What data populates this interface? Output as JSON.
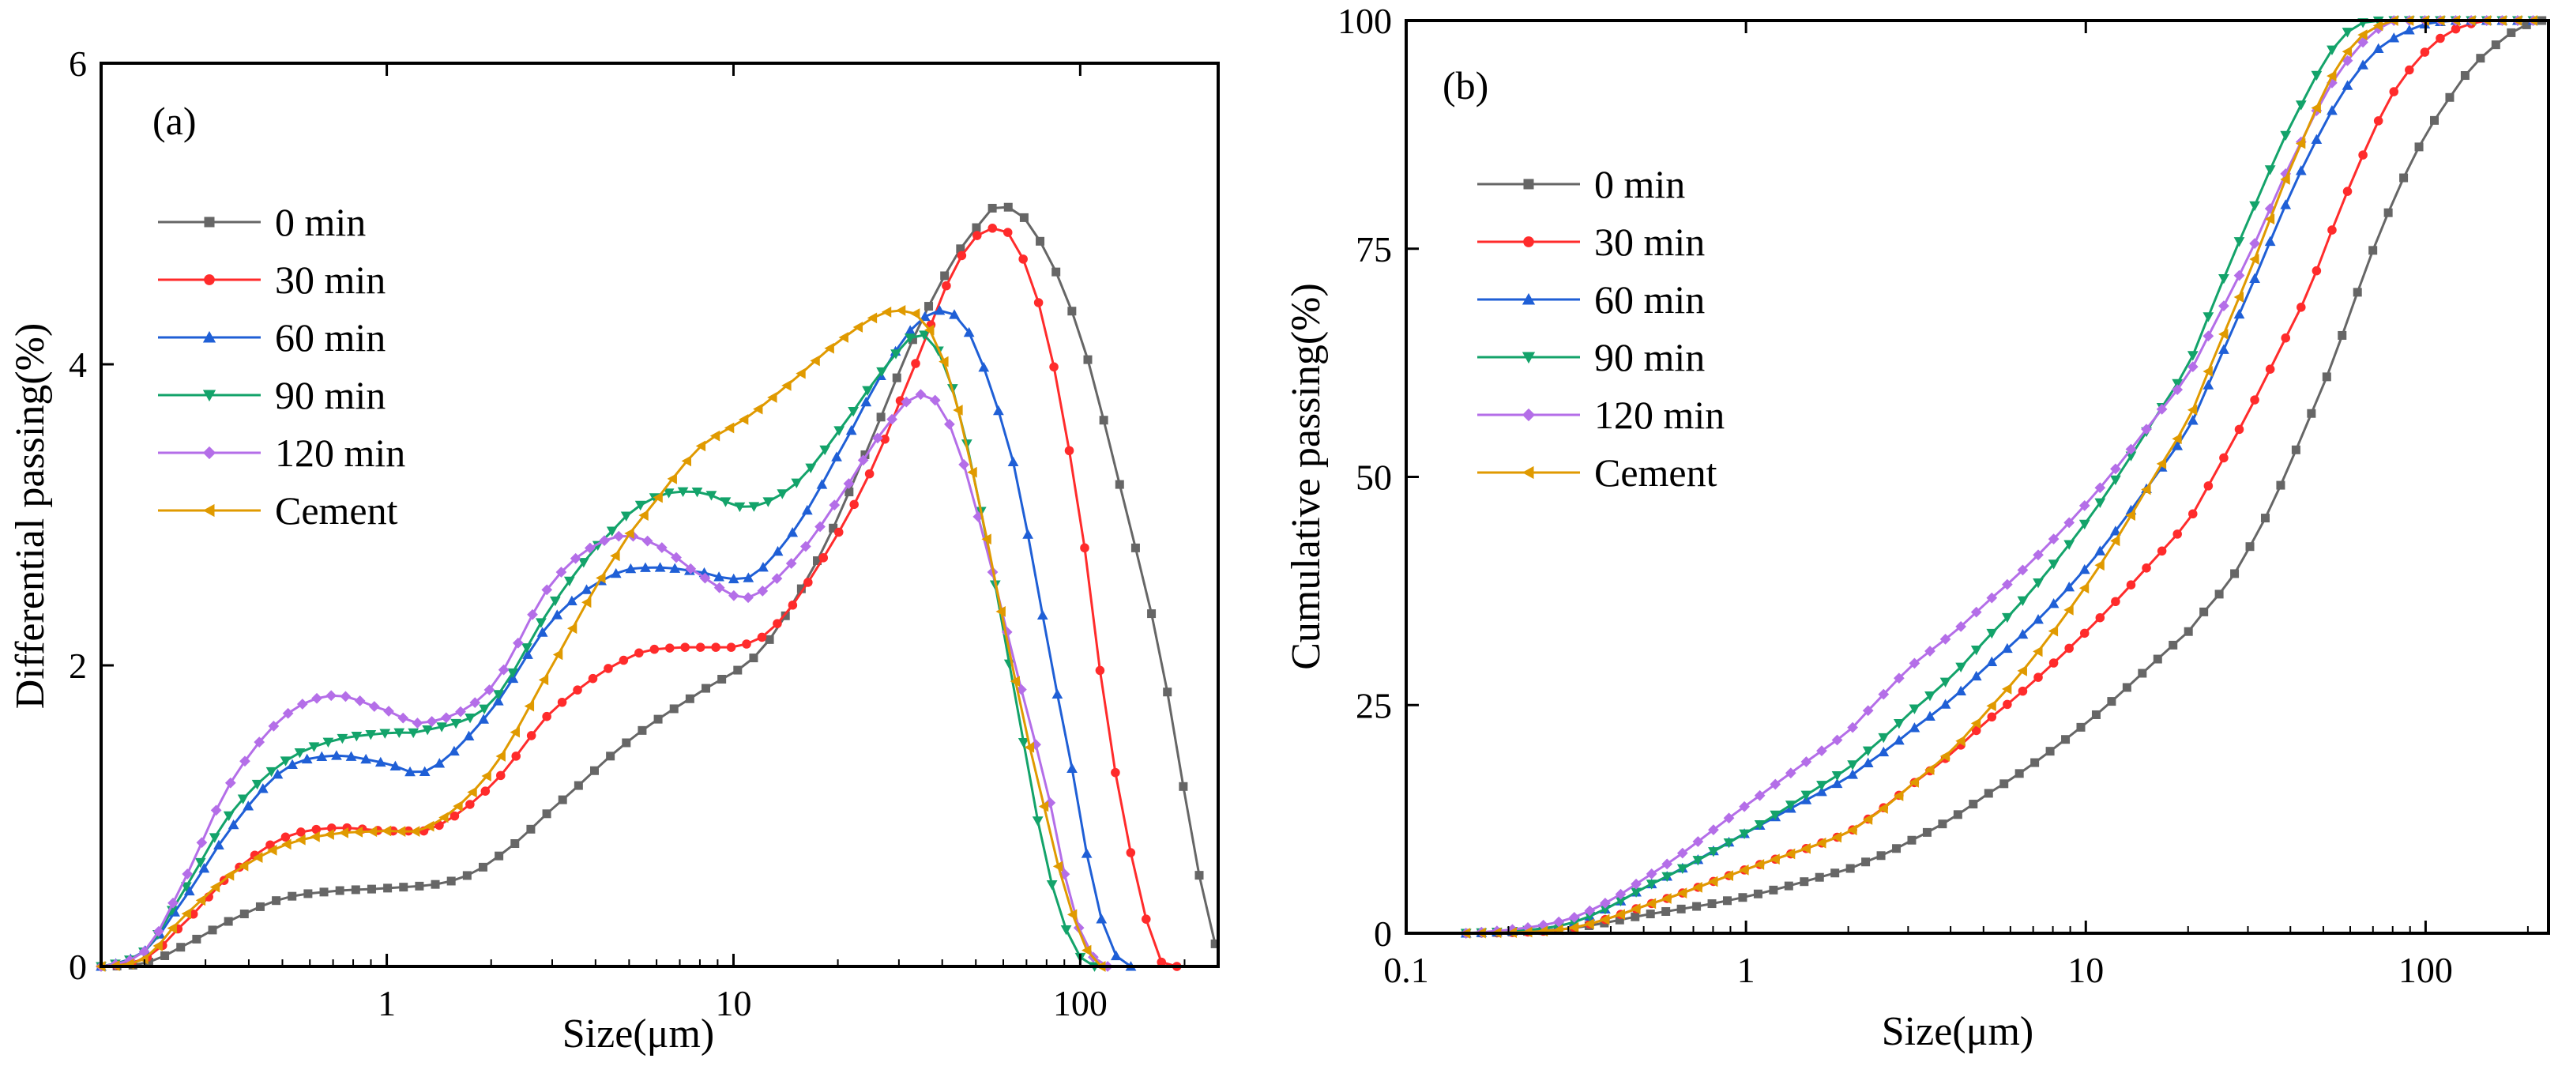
{
  "colors": {
    "0 min": "#666666",
    "30 min": "#ff2b2b",
    "60 min": "#1f5fd6",
    "90 min": "#13a36a",
    "120 min": "#b46ee8",
    "Cement": "#e09a00"
  },
  "chart_data": [
    {
      "type": "line",
      "panel_label": "(a)",
      "xlabel": "Size(μm)",
      "ylabel": "Differential passing(%)",
      "xscale": "log",
      "xlim": [
        0.15,
        250
      ],
      "ylim": [
        0,
        6
      ],
      "x_ticks": [
        1,
        10,
        100
      ],
      "x_tick_labels": [
        "1",
        "10",
        "100"
      ],
      "y_ticks": [
        0,
        2,
        4,
        6
      ],
      "y_tick_labels": [
        "0",
        "2",
        "4",
        "6"
      ],
      "legend_position": "upper-left",
      "series": [
        {
          "name": "0 min",
          "marker": "square",
          "points": [
            [
              0.15,
              0
            ],
            [
              0.2,
              0.02
            ],
            [
              0.25,
              0.12
            ],
            [
              0.35,
              0.3
            ],
            [
              0.5,
              0.45
            ],
            [
              0.7,
              0.5
            ],
            [
              1.0,
              0.52
            ],
            [
              1.5,
              0.56
            ],
            [
              2.0,
              0.7
            ],
            [
              3.0,
              1.05
            ],
            [
              5.0,
              1.5
            ],
            [
              8.0,
              1.82
            ],
            [
              12.0,
              2.1
            ],
            [
              18.0,
              2.75
            ],
            [
              25.0,
              3.5
            ],
            [
              35.0,
              4.3
            ],
            [
              50.0,
              4.9
            ],
            [
              60.0,
              5.05
            ],
            [
              75.0,
              4.85
            ],
            [
              100.0,
              4.2
            ],
            [
              130.0,
              3.2
            ],
            [
              170.0,
              2.1
            ],
            [
              210.0,
              0.9
            ],
            [
              245.0,
              0.15
            ]
          ]
        },
        {
          "name": "30 min",
          "marker": "circle",
          "points": [
            [
              0.15,
              0
            ],
            [
              0.2,
              0.05
            ],
            [
              0.25,
              0.25
            ],
            [
              0.35,
              0.6
            ],
            [
              0.5,
              0.85
            ],
            [
              0.7,
              0.92
            ],
            [
              1.0,
              0.9
            ],
            [
              1.3,
              0.9
            ],
            [
              2.0,
              1.2
            ],
            [
              3.0,
              1.7
            ],
            [
              5.0,
              2.05
            ],
            [
              7.0,
              2.12
            ],
            [
              10.0,
              2.12
            ],
            [
              13.0,
              2.25
            ],
            [
              18.0,
              2.7
            ],
            [
              25.0,
              3.3
            ],
            [
              35.0,
              4.1
            ],
            [
              45.0,
              4.7
            ],
            [
              55.0,
              4.9
            ],
            [
              65.0,
              4.8
            ],
            [
              80.0,
              4.2
            ],
            [
              100.0,
              3.0
            ],
            [
              120.0,
              1.6
            ],
            [
              145.0,
              0.6
            ],
            [
              170.0,
              0.05
            ],
            [
              190.0,
              0
            ]
          ]
        },
        {
          "name": "60 min",
          "marker": "triangle-up",
          "points": [
            [
              0.15,
              0
            ],
            [
              0.2,
              0.1
            ],
            [
              0.25,
              0.4
            ],
            [
              0.35,
              0.9
            ],
            [
              0.5,
              1.3
            ],
            [
              0.7,
              1.4
            ],
            [
              1.0,
              1.35
            ],
            [
              1.3,
              1.3
            ],
            [
              2.0,
              1.7
            ],
            [
              3.0,
              2.3
            ],
            [
              4.5,
              2.6
            ],
            [
              6.0,
              2.65
            ],
            [
              8.0,
              2.62
            ],
            [
              11.0,
              2.58
            ],
            [
              15.0,
              2.9
            ],
            [
              20.0,
              3.4
            ],
            [
              28.0,
              4.0
            ],
            [
              35.0,
              4.3
            ],
            [
              42.0,
              4.35
            ],
            [
              50.0,
              4.1
            ],
            [
              65.0,
              3.3
            ],
            [
              80.0,
              2.2
            ],
            [
              95.0,
              1.3
            ],
            [
              110.0,
              0.5
            ],
            [
              125.0,
              0.1
            ],
            [
              140.0,
              0
            ]
          ]
        },
        {
          "name": "90 min",
          "marker": "triangle-down",
          "points": [
            [
              0.15,
              0
            ],
            [
              0.2,
              0.1
            ],
            [
              0.25,
              0.45
            ],
            [
              0.35,
              1.0
            ],
            [
              0.5,
              1.35
            ],
            [
              0.7,
              1.5
            ],
            [
              1.0,
              1.55
            ],
            [
              1.3,
              1.57
            ],
            [
              2.0,
              1.75
            ],
            [
              3.0,
              2.4
            ],
            [
              4.5,
              2.9
            ],
            [
              6.0,
              3.12
            ],
            [
              8.0,
              3.15
            ],
            [
              11.0,
              3.05
            ],
            [
              15.0,
              3.2
            ],
            [
              20.0,
              3.55
            ],
            [
              28.0,
              4.0
            ],
            [
              35.0,
              4.2
            ],
            [
              42.0,
              3.9
            ],
            [
              52.0,
              3.0
            ],
            [
              65.0,
              1.8
            ],
            [
              80.0,
              0.7
            ],
            [
              95.0,
              0.15
            ],
            [
              110.0,
              0
            ]
          ]
        },
        {
          "name": "120 min",
          "marker": "diamond",
          "points": [
            [
              0.15,
              0
            ],
            [
              0.2,
              0.1
            ],
            [
              0.25,
              0.5
            ],
            [
              0.35,
              1.2
            ],
            [
              0.5,
              1.65
            ],
            [
              0.7,
              1.8
            ],
            [
              1.0,
              1.7
            ],
            [
              1.3,
              1.62
            ],
            [
              2.0,
              1.85
            ],
            [
              3.0,
              2.55
            ],
            [
              4.5,
              2.85
            ],
            [
              6.0,
              2.8
            ],
            [
              8.0,
              2.6
            ],
            [
              11.0,
              2.45
            ],
            [
              15.0,
              2.7
            ],
            [
              20.0,
              3.1
            ],
            [
              28.0,
              3.6
            ],
            [
              35.0,
              3.8
            ],
            [
              42.0,
              3.6
            ],
            [
              52.0,
              2.9
            ],
            [
              65.0,
              2.0
            ],
            [
              80.0,
              1.2
            ],
            [
              95.0,
              0.4
            ],
            [
              110.0,
              0.05
            ],
            [
              120.0,
              0
            ]
          ]
        },
        {
          "name": "Cement",
          "marker": "triangle-left",
          "points": [
            [
              0.15,
              0
            ],
            [
              0.2,
              0.05
            ],
            [
              0.25,
              0.3
            ],
            [
              0.35,
              0.6
            ],
            [
              0.5,
              0.8
            ],
            [
              0.7,
              0.88
            ],
            [
              1.0,
              0.9
            ],
            [
              1.3,
              0.92
            ],
            [
              2.0,
              1.3
            ],
            [
              3.0,
              2.0
            ],
            [
              4.5,
              2.7
            ],
            [
              6.0,
              3.1
            ],
            [
              8.0,
              3.45
            ],
            [
              11.0,
              3.65
            ],
            [
              15.0,
              3.9
            ],
            [
              20.0,
              4.15
            ],
            [
              28.0,
              4.35
            ],
            [
              35.0,
              4.3
            ],
            [
              42.0,
              3.9
            ],
            [
              52.0,
              3.0
            ],
            [
              65.0,
              1.9
            ],
            [
              80.0,
              1.0
            ],
            [
              95.0,
              0.35
            ],
            [
              105.0,
              0.1
            ],
            [
              115.0,
              0
            ]
          ]
        }
      ]
    },
    {
      "type": "line",
      "panel_label": "(b)",
      "xlabel": "Size(μm)",
      "ylabel": "Cumulative passing(%)",
      "xscale": "log",
      "xlim": [
        0.1,
        230
      ],
      "ylim": [
        0,
        100
      ],
      "x_ticks": [
        0.1,
        1,
        10,
        100
      ],
      "x_tick_labels": [
        "0.1",
        "1",
        "10",
        "100"
      ],
      "y_ticks": [
        0,
        25,
        50,
        75,
        100
      ],
      "y_tick_labels": [
        "0",
        "25",
        "50",
        "75",
        "100"
      ],
      "legend_position": "upper-left",
      "series": [
        {
          "name": "0 min",
          "marker": "square",
          "points": [
            [
              0.15,
              0
            ],
            [
              0.3,
              0.5
            ],
            [
              0.5,
              2
            ],
            [
              1.0,
              4
            ],
            [
              2.0,
              7
            ],
            [
              3.0,
              10
            ],
            [
              5.0,
              15
            ],
            [
              10.0,
              23
            ],
            [
              20.0,
              33
            ],
            [
              30.0,
              42
            ],
            [
              50.0,
              60
            ],
            [
              80.0,
              80
            ],
            [
              120.0,
              92
            ],
            [
              170.0,
              98
            ],
            [
              220.0,
              100
            ]
          ]
        },
        {
          "name": "30 min",
          "marker": "circle",
          "points": [
            [
              0.15,
              0
            ],
            [
              0.3,
              0.5
            ],
            [
              0.5,
              3
            ],
            [
              1.0,
              7
            ],
            [
              2.0,
              11
            ],
            [
              3.0,
              16
            ],
            [
              5.0,
              23
            ],
            [
              10.0,
              33
            ],
            [
              20.0,
              45
            ],
            [
              30.0,
              57
            ],
            [
              45.0,
              70
            ],
            [
              60.0,
              82
            ],
            [
              80.0,
              92
            ],
            [
              110.0,
              98
            ],
            [
              150.0,
              100
            ],
            [
              230.0,
              100
            ]
          ]
        },
        {
          "name": "60 min",
          "marker": "triangle-up",
          "points": [
            [
              0.15,
              0
            ],
            [
              0.3,
              1
            ],
            [
              0.5,
              5
            ],
            [
              1.0,
              11
            ],
            [
              2.0,
              17
            ],
            [
              3.0,
              22
            ],
            [
              5.0,
              29
            ],
            [
              10.0,
              40
            ],
            [
              20.0,
              55
            ],
            [
              30.0,
              70
            ],
            [
              45.0,
              85
            ],
            [
              65.0,
              95
            ],
            [
              90.0,
              99
            ],
            [
              120.0,
              100
            ],
            [
              230.0,
              100
            ]
          ]
        },
        {
          "name": "90 min",
          "marker": "triangle-down",
          "points": [
            [
              0.15,
              0
            ],
            [
              0.3,
              1
            ],
            [
              0.5,
              5
            ],
            [
              1.0,
              11
            ],
            [
              2.0,
              18
            ],
            [
              3.0,
              24
            ],
            [
              5.0,
              32
            ],
            [
              10.0,
              45
            ],
            [
              20.0,
              62
            ],
            [
              30.0,
              78
            ],
            [
              45.0,
              92
            ],
            [
              60.0,
              99
            ],
            [
              80.0,
              100
            ],
            [
              230.0,
              100
            ]
          ]
        },
        {
          "name": "120 min",
          "marker": "diamond",
          "points": [
            [
              0.15,
              0
            ],
            [
              0.3,
              1.5
            ],
            [
              0.5,
              6
            ],
            [
              1.0,
              14
            ],
            [
              2.0,
              22
            ],
            [
              3.0,
              29
            ],
            [
              5.0,
              36
            ],
            [
              10.0,
              47
            ],
            [
              20.0,
              61
            ],
            [
              30.0,
              74
            ],
            [
              45.0,
              88
            ],
            [
              60.0,
              96
            ],
            [
              80.0,
              100
            ],
            [
              230.0,
              100
            ]
          ]
        },
        {
          "name": "Cement",
          "marker": "triangle-left",
          "points": [
            [
              0.15,
              0
            ],
            [
              0.3,
              0.5
            ],
            [
              0.5,
              3
            ],
            [
              1.0,
              7
            ],
            [
              2.0,
              11
            ],
            [
              3.0,
              16
            ],
            [
              5.0,
              24
            ],
            [
              10.0,
              38
            ],
            [
              20.0,
              56
            ],
            [
              30.0,
              72
            ],
            [
              45.0,
              88
            ],
            [
              60.0,
              97
            ],
            [
              80.0,
              100
            ],
            [
              230.0,
              100
            ]
          ]
        }
      ]
    }
  ]
}
